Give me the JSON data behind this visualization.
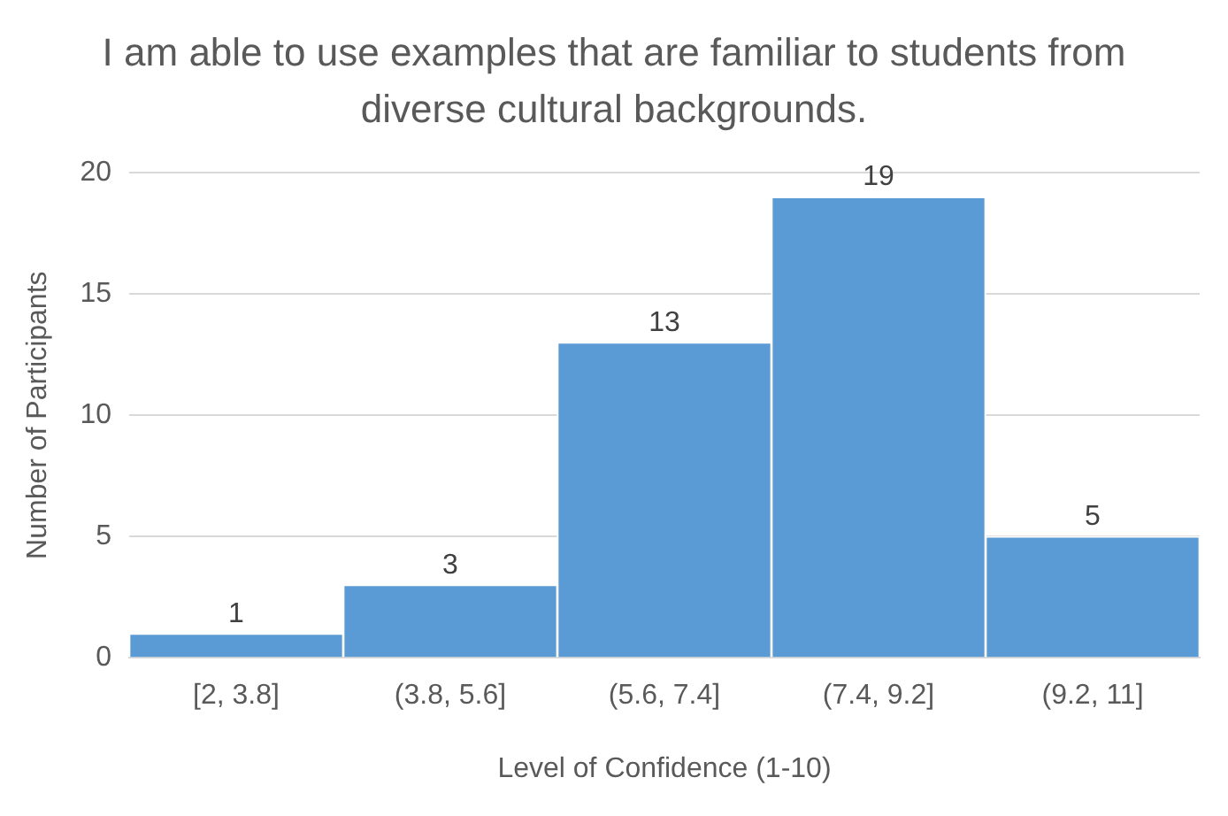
{
  "chart_data": {
    "type": "bar",
    "title": "I am able to use examples that are familiar to students from diverse cultural backgrounds.",
    "xlabel": "Level of Confidence (1-10)",
    "ylabel": "Number of Participants",
    "categories": [
      "[2, 3.8]",
      "(3.8, 5.6]",
      "(5.6, 7.4]",
      "(7.4, 9.2]",
      "(9.2, 11]"
    ],
    "values": [
      1,
      3,
      13,
      19,
      5
    ],
    "color": "#5b9bd5",
    "ylim": [
      0,
      20
    ],
    "yticks": [
      0,
      5,
      10,
      15,
      20
    ],
    "grid": "y",
    "data_labels": true,
    "legend": false
  }
}
